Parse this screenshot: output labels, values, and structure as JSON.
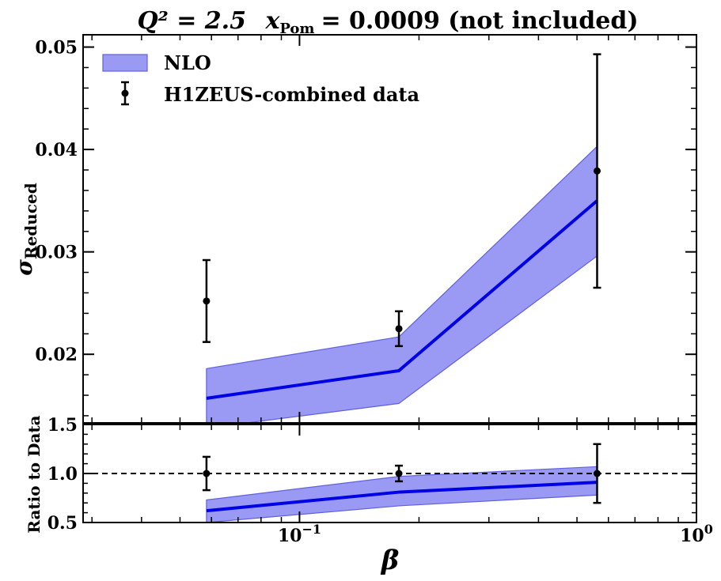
{
  "chart_data": {
    "type": "line",
    "title_q2": "Q² = 2.5",
    "title_xpom": "x",
    "title_xpom_sub": "Pom",
    "title_value": "= 0.0009 (not included)",
    "xlabel": "β",
    "ylabel": "σ",
    "ylabel_sub": "Reduced",
    "ratio_ylabel": "Ratio to Data",
    "x_scale": "log",
    "xlim": [
      0.0285,
      1.0
    ],
    "ylim": [
      0.0133,
      0.0512
    ],
    "ratio_ylim": [
      0.5,
      1.5
    ],
    "x_tick_labels": [
      {
        "x": 0.1,
        "base": "10",
        "exp": "−1"
      },
      {
        "x": 1.0,
        "base": "10",
        "exp": "0"
      }
    ],
    "y_ticks": [
      0.02,
      0.03,
      0.04,
      0.05
    ],
    "y_tick_labels": [
      "0.02",
      "0.03",
      "0.04",
      "0.05"
    ],
    "ratio_ticks": [
      0.5,
      1.0,
      1.5
    ],
    "ratio_tick_labels": [
      "0.5",
      "1.0",
      "1.5"
    ],
    "legend_position": "top-left",
    "series": [
      {
        "name": "NLO",
        "kind": "band-with-line",
        "color": "#0000e6",
        "band_color": "#9a9af5",
        "x": [
          0.0583,
          0.178,
          0.562
        ],
        "values": [
          0.0157,
          0.0184,
          0.035
        ],
        "lower": [
          0.0128,
          0.0152,
          0.0296
        ],
        "upper": [
          0.0186,
          0.0217,
          0.0403
        ]
      },
      {
        "name": "H1ZEUS-combined data",
        "kind": "errorbar",
        "color": "#000000",
        "x": [
          0.0583,
          0.178,
          0.562
        ],
        "values": [
          0.0252,
          0.0225,
          0.0379
        ],
        "errors": [
          0.004,
          0.0017,
          0.0114
        ]
      }
    ],
    "ratio": {
      "x": [
        0.0583,
        0.178,
        0.562
      ],
      "values": [
        0.62,
        0.81,
        0.91
      ],
      "lower": [
        0.5,
        0.67,
        0.78
      ],
      "upper": [
        0.73,
        0.97,
        1.07
      ],
      "data_values": [
        1.0,
        1.0,
        1.0
      ],
      "data_errors": [
        0.17,
        0.08,
        0.3
      ],
      "reference_line": 1.0
    }
  },
  "colors": {
    "band": "#9a9af5",
    "band_edge": "#6060e0",
    "line": "#0000e6",
    "data": "#000000"
  }
}
